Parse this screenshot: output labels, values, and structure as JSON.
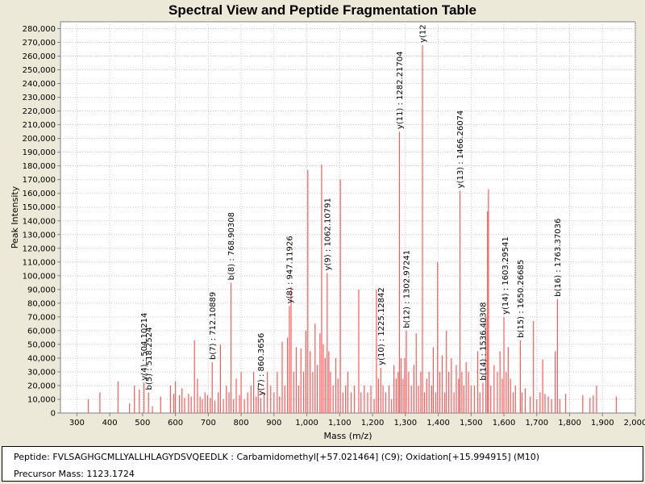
{
  "info": {
    "peptide_label": "Peptide:",
    "peptide_value": "FVLSAGHGCMLLYALLHLAGYDSVQEEDLK : Carbamidomethyl[+57.021464] (C9); Oxidation[+15.994915] (M10)",
    "precursor_label": "Precursor Mass:",
    "precursor_value": "1123.1724"
  },
  "colors": {
    "peak": "#ff5a5a",
    "plot_bg": "#ffffff",
    "grid": "#c8c8c8",
    "frame_bg": "#ece9d8"
  },
  "chart_data": {
    "type": "bar",
    "title": "Spectral View and Peptide Fragmentation Table",
    "xlabel": "Mass (m/z)",
    "ylabel": "Peak Intensity",
    "xlim": [
      250,
      2000
    ],
    "ylim": [
      0,
      285000
    ],
    "grid": true,
    "x_ticks": [
      300,
      400,
      500,
      600,
      700,
      800,
      900,
      1000,
      1100,
      1200,
      1300,
      1400,
      1500,
      1600,
      1700,
      1800,
      1900,
      2000
    ],
    "x_tick_labels": [
      "300",
      "400",
      "500",
      "600",
      "700",
      "800",
      "900",
      "1,000",
      "1,100",
      "1,200",
      "1,300",
      "1,400",
      "1,500",
      "1,600",
      "1,700",
      "1,800",
      "1,900",
      "2,000"
    ],
    "y_ticks": [
      0,
      10000,
      20000,
      30000,
      40000,
      50000,
      60000,
      70000,
      80000,
      90000,
      100000,
      110000,
      120000,
      130000,
      140000,
      150000,
      160000,
      170000,
      180000,
      190000,
      200000,
      210000,
      220000,
      230000,
      240000,
      250000,
      260000,
      270000,
      280000
    ],
    "y_tick_labels": [
      "0",
      "10,000",
      "20,000",
      "30,000",
      "40,000",
      "50,000",
      "60,000",
      "70,000",
      "80,000",
      "90,000",
      "100,000",
      "110,000",
      "120,000",
      "130,000",
      "140,000",
      "150,000",
      "160,000",
      "170,000",
      "180,000",
      "190,000",
      "200,000",
      "210,000",
      "220,000",
      "230,000",
      "240,000",
      "250,000",
      "260,000",
      "270,000",
      "280,000"
    ],
    "peaks": [
      [
        335,
        10000
      ],
      [
        370,
        15000
      ],
      [
        425,
        23000
      ],
      [
        460,
        7000
      ],
      [
        475,
        20000
      ],
      [
        490,
        17000
      ],
      [
        504,
        22000
      ],
      [
        518,
        15000
      ],
      [
        530,
        5000
      ],
      [
        555,
        12000
      ],
      [
        585,
        20000
      ],
      [
        595,
        14000
      ],
      [
        600,
        23000
      ],
      [
        612,
        13000
      ],
      [
        620,
        18000
      ],
      [
        628,
        11000
      ],
      [
        640,
        14000
      ],
      [
        648,
        12000
      ],
      [
        658,
        53000
      ],
      [
        667,
        25000
      ],
      [
        675,
        12000
      ],
      [
        682,
        10000
      ],
      [
        690,
        15000
      ],
      [
        698,
        13000
      ],
      [
        706,
        11000
      ],
      [
        712,
        37000
      ],
      [
        720,
        9000
      ],
      [
        730,
        15000
      ],
      [
        737,
        50000
      ],
      [
        746,
        10000
      ],
      [
        755,
        20000
      ],
      [
        763,
        15000
      ],
      [
        769,
        95000
      ],
      [
        777,
        10000
      ],
      [
        785,
        25000
      ],
      [
        795,
        13000
      ],
      [
        800,
        30000
      ],
      [
        810,
        10000
      ],
      [
        820,
        15000
      ],
      [
        830,
        20000
      ],
      [
        838,
        30000
      ],
      [
        846,
        12000
      ],
      [
        852,
        20000
      ],
      [
        860,
        11000
      ],
      [
        870,
        15000
      ],
      [
        880,
        30000
      ],
      [
        890,
        20000
      ],
      [
        900,
        15000
      ],
      [
        910,
        30000
      ],
      [
        917,
        12000
      ],
      [
        925,
        52000
      ],
      [
        933,
        20000
      ],
      [
        941,
        55000
      ],
      [
        947,
        78000
      ],
      [
        952,
        92000
      ],
      [
        960,
        30000
      ],
      [
        968,
        48000
      ],
      [
        975,
        20000
      ],
      [
        982,
        47000
      ],
      [
        990,
        30000
      ],
      [
        997,
        60000
      ],
      [
        1003,
        177000
      ],
      [
        1010,
        45000
      ],
      [
        1018,
        30000
      ],
      [
        1025,
        65000
      ],
      [
        1032,
        35000
      ],
      [
        1040,
        58000
      ],
      [
        1045,
        181000
      ],
      [
        1050,
        50000
      ],
      [
        1056,
        40000
      ],
      [
        1062,
        102000
      ],
      [
        1067,
        45000
      ],
      [
        1072,
        30000
      ],
      [
        1080,
        20000
      ],
      [
        1088,
        40000
      ],
      [
        1095,
        25000
      ],
      [
        1102,
        170000
      ],
      [
        1110,
        15000
      ],
      [
        1118,
        20000
      ],
      [
        1125,
        30000
      ],
      [
        1135,
        15000
      ],
      [
        1145,
        20000
      ],
      [
        1158,
        90000
      ],
      [
        1165,
        15000
      ],
      [
        1175,
        20000
      ],
      [
        1185,
        15000
      ],
      [
        1195,
        20000
      ],
      [
        1205,
        10000
      ],
      [
        1212,
        90000
      ],
      [
        1218,
        25000
      ],
      [
        1225,
        33000
      ],
      [
        1232,
        20000
      ],
      [
        1240,
        15000
      ],
      [
        1250,
        20000
      ],
      [
        1258,
        10000
      ],
      [
        1265,
        35000
      ],
      [
        1272,
        25000
      ],
      [
        1278,
        30000
      ],
      [
        1282,
        205000
      ],
      [
        1287,
        40000
      ],
      [
        1293,
        25000
      ],
      [
        1298,
        40000
      ],
      [
        1303,
        60000
      ],
      [
        1310,
        30000
      ],
      [
        1318,
        20000
      ],
      [
        1326,
        35000
      ],
      [
        1333,
        58000
      ],
      [
        1340,
        20000
      ],
      [
        1347,
        30000
      ],
      [
        1352,
        268000
      ],
      [
        1358,
        15000
      ],
      [
        1365,
        25000
      ],
      [
        1372,
        30000
      ],
      [
        1380,
        20000
      ],
      [
        1385,
        48000
      ],
      [
        1392,
        15000
      ],
      [
        1398,
        110000
      ],
      [
        1405,
        30000
      ],
      [
        1412,
        42000
      ],
      [
        1420,
        15000
      ],
      [
        1425,
        60000
      ],
      [
        1432,
        30000
      ],
      [
        1440,
        40000
      ],
      [
        1448,
        15000
      ],
      [
        1455,
        35000
      ],
      [
        1462,
        25000
      ],
      [
        1466,
        162000
      ],
      [
        1472,
        30000
      ],
      [
        1478,
        20000
      ],
      [
        1485,
        37000
      ],
      [
        1492,
        30000
      ],
      [
        1500,
        20000
      ],
      [
        1510,
        20000
      ],
      [
        1520,
        45000
      ],
      [
        1527,
        15000
      ],
      [
        1536,
        22000
      ],
      [
        1545,
        70000
      ],
      [
        1550,
        147000
      ],
      [
        1553,
        163000
      ],
      [
        1560,
        20000
      ],
      [
        1570,
        35000
      ],
      [
        1580,
        30000
      ],
      [
        1588,
        45000
      ],
      [
        1595,
        25000
      ],
      [
        1600,
        70000
      ],
      [
        1607,
        30000
      ],
      [
        1613,
        48000
      ],
      [
        1620,
        25000
      ],
      [
        1628,
        15000
      ],
      [
        1635,
        20000
      ],
      [
        1650,
        53000
      ],
      [
        1655,
        15000
      ],
      [
        1665,
        18000
      ],
      [
        1680,
        12000
      ],
      [
        1690,
        67000
      ],
      [
        1700,
        10000
      ],
      [
        1710,
        15000
      ],
      [
        1718,
        39000
      ],
      [
        1725,
        14000
      ],
      [
        1735,
        12000
      ],
      [
        1745,
        10000
      ],
      [
        1756,
        45000
      ],
      [
        1763,
        83000
      ],
      [
        1770,
        10000
      ],
      [
        1788,
        14000
      ],
      [
        1840,
        13000
      ],
      [
        1862,
        11000
      ],
      [
        1872,
        13000
      ],
      [
        1882,
        20000
      ],
      [
        1942,
        12000
      ]
    ],
    "annotations": [
      {
        "x": 504.10214,
        "y": 22000,
        "label": "y(4) : 504.10214"
      },
      {
        "x": 518.2524,
        "y": 15000,
        "label": "b(5) : 518.2524"
      },
      {
        "x": 712.10889,
        "y": 37000,
        "label": "b(7) : 712.10889"
      },
      {
        "x": 768.90308,
        "y": 95000,
        "label": "b(8) : 768.90308"
      },
      {
        "x": 860.3656,
        "y": 11000,
        "label": "y(7) : 860.3656"
      },
      {
        "x": 947.11926,
        "y": 78000,
        "label": "y(8) : 947.11926"
      },
      {
        "x": 1062.10791,
        "y": 102000,
        "label": "y(9) : 1062.10791"
      },
      {
        "x": 1225.12842,
        "y": 33000,
        "label": "y(10) : 1225.12842"
      },
      {
        "x": 1282.21704,
        "y": 205000,
        "label": "y(11) : 1282.21704"
      },
      {
        "x": 1302.97241,
        "y": 60000,
        "label": "b(12) : 1302.97241"
      },
      {
        "x": 1352,
        "y": 268000,
        "label": "y(12"
      },
      {
        "x": 1466.26074,
        "y": 162000,
        "label": "y(13) : 1466.26074"
      },
      {
        "x": 1536.40308,
        "y": 22000,
        "label": "b(14) : 1536.40308"
      },
      {
        "x": 1603.29541,
        "y": 70000,
        "label": "y(14) : 1603.29541"
      },
      {
        "x": 1650.26685,
        "y": 53000,
        "label": "b(15) : 1650.26685"
      },
      {
        "x": 1763.37036,
        "y": 83000,
        "label": "b(16) : 1763.37036"
      }
    ]
  }
}
